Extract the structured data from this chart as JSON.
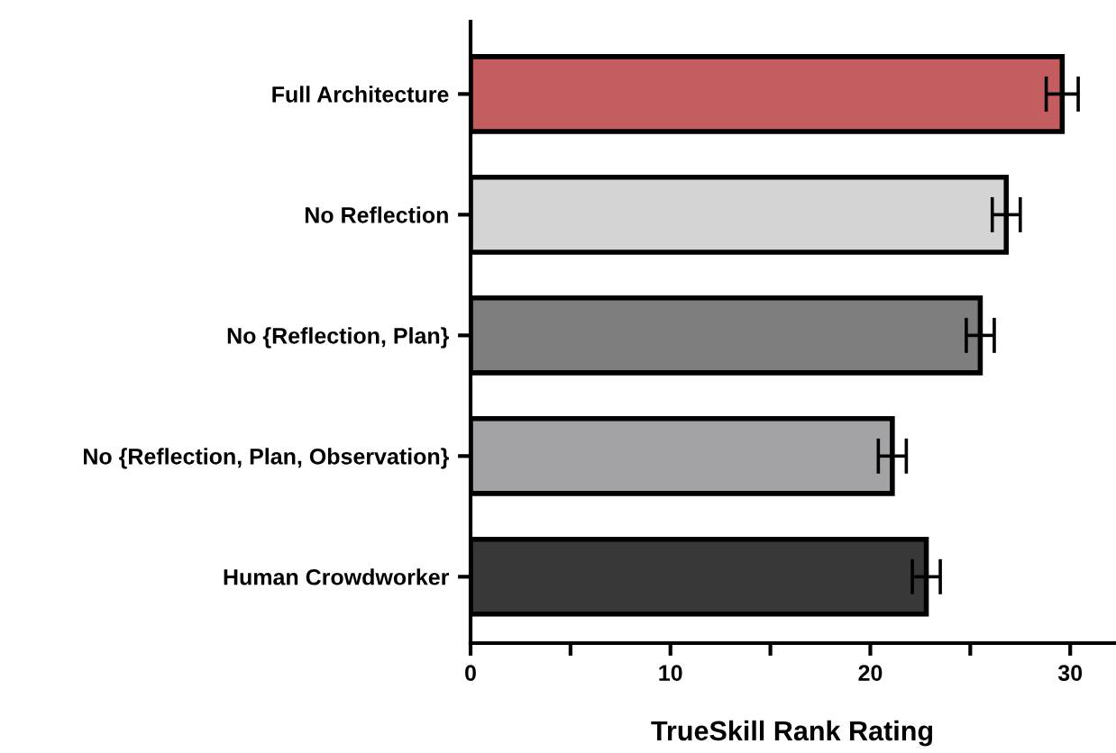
{
  "chart_data": {
    "type": "bar",
    "orientation": "horizontal",
    "xlabel": "TrueSkill Rank Rating",
    "categories": [
      "Full Architecture",
      "No Reflection",
      "No {Reflection, Plan}",
      "No {Reflection, Plan, Observation}",
      "Human Crowdworker"
    ],
    "values": [
      29.6,
      26.8,
      25.5,
      21.1,
      22.8
    ],
    "errors": [
      0.8,
      0.7,
      0.7,
      0.7,
      0.7
    ],
    "colors": [
      "#c45d5f",
      "#d4d4d4",
      "#7d7d7d",
      "#a3a3a5",
      "#383838"
    ],
    "xlim": [
      0,
      32.2
    ],
    "xticks": [
      0,
      {
        "value": 5,
        "label": null
      },
      10,
      {
        "value": 15,
        "label": null
      },
      20,
      {
        "value": 25,
        "label": null
      },
      30
    ],
    "grid": false
  }
}
